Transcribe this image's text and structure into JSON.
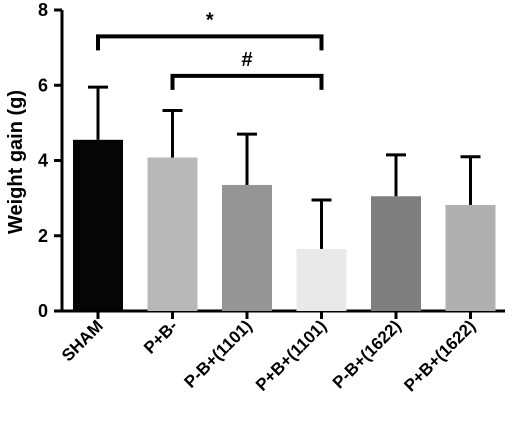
{
  "chart_data": {
    "type": "bar",
    "title": "",
    "xlabel": "",
    "ylabel": "Weight gain (g)",
    "ylim": [
      0,
      8
    ],
    "yticks": [
      0,
      2,
      4,
      6,
      8
    ],
    "categories": [
      "SHAM",
      "P+B-",
      "P-B+(1101)",
      "P+B+(1101)",
      "P-B+(1622)",
      "P+B+(1622)"
    ],
    "values": [
      4.55,
      4.08,
      3.35,
      1.65,
      3.05,
      2.82
    ],
    "errors": [
      1.4,
      1.25,
      1.35,
      1.3,
      1.1,
      1.28
    ],
    "bar_colors": [
      "#050505",
      "#b8b8b8",
      "#959595",
      "#e9e9e9",
      "#7f7f7f",
      "#b0b0b0"
    ],
    "annotations": [
      {
        "label": "*",
        "from": 0,
        "to": 3,
        "y": 7.3
      },
      {
        "label": "#",
        "from": 1,
        "to": 3,
        "y": 6.25
      }
    ],
    "grid": false,
    "legend": "none"
  }
}
